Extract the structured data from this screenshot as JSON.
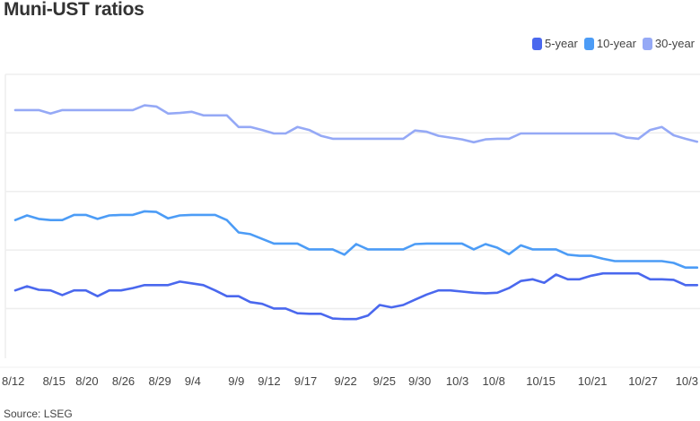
{
  "title": "Muni-UST ratios",
  "source": "Source: LSEG",
  "colors": {
    "5-year": "#4a68ee",
    "10-year": "#4c9cf6",
    "30-year": "#95a9f6",
    "grid": "#eeeeee"
  },
  "chart_data": {
    "type": "line",
    "title": "Muni-UST ratios",
    "xlabel": "",
    "ylabel": "",
    "grid": true,
    "legend_placement": "top-right",
    "x_tick_labels": [
      "8/12",
      "8/15",
      "8/20",
      "8/26",
      "8/29",
      "9/4",
      "9/9",
      "9/12",
      "9/17",
      "9/22",
      "9/25",
      "9/30",
      "10/3",
      "10/8",
      "10/15",
      "10/21",
      "10/27",
      "10/3"
    ],
    "ylim": [
      -0.85,
      4.0
    ],
    "series": [
      {
        "name": "5-year",
        "color": "#4a68ee",
        "values": [
          0.31,
          0.38,
          0.32,
          0.31,
          0.23,
          0.31,
          0.31,
          0.21,
          0.31,
          0.31,
          0.35,
          0.4,
          0.4,
          0.4,
          0.46,
          0.43,
          0.4,
          0.31,
          0.21,
          0.21,
          0.11,
          0.08,
          0,
          0,
          -0.08,
          -0.09,
          -0.09,
          -0.17,
          -0.18,
          -0.18,
          -0.12,
          0.06,
          0.02,
          0.06,
          0.15,
          0.24,
          0.31,
          0.31,
          0.29,
          0.27,
          0.26,
          0.27,
          0.35,
          0.47,
          0.5,
          0.44,
          0.58,
          0.5,
          0.5,
          0.56,
          0.6,
          0.6,
          0.6,
          0.6,
          0.5,
          0.5,
          0.49,
          0.4,
          0.4
        ]
      },
      {
        "name": "10-year",
        "color": "#4c9cf6",
        "values": [
          1.51,
          1.59,
          1.53,
          1.51,
          1.51,
          1.6,
          1.6,
          1.53,
          1.59,
          1.6,
          1.6,
          1.66,
          1.65,
          1.54,
          1.59,
          1.6,
          1.6,
          1.6,
          1.51,
          1.3,
          1.27,
          1.19,
          1.11,
          1.11,
          1.11,
          1.01,
          1.01,
          1.01,
          0.92,
          1.1,
          1.01,
          1.01,
          1.01,
          1.01,
          1.1,
          1.11,
          1.11,
          1.11,
          1.11,
          1.01,
          1.1,
          1.04,
          0.93,
          1.08,
          1.01,
          1.01,
          1.01,
          0.92,
          0.9,
          0.9,
          0.85,
          0.81,
          0.81,
          0.81,
          0.81,
          0.81,
          0.78,
          0.7,
          0.7
        ]
      },
      {
        "name": "30-year",
        "color": "#95a9f6",
        "values": [
          3.39,
          3.39,
          3.39,
          3.33,
          3.39,
          3.39,
          3.39,
          3.39,
          3.39,
          3.39,
          3.39,
          3.47,
          3.45,
          3.33,
          3.34,
          3.36,
          3.3,
          3.3,
          3.3,
          3.1,
          3.1,
          3.05,
          2.99,
          2.99,
          3.1,
          3.05,
          2.95,
          2.9,
          2.9,
          2.9,
          2.9,
          2.9,
          2.9,
          2.9,
          3.04,
          3.02,
          2.95,
          2.92,
          2.89,
          2.84,
          2.89,
          2.9,
          2.9,
          2.99,
          2.99,
          2.99,
          2.99,
          2.99,
          2.99,
          2.99,
          2.99,
          2.99,
          2.92,
          2.9,
          3.05,
          3.1,
          2.96,
          2.9,
          2.85
        ]
      }
    ]
  }
}
